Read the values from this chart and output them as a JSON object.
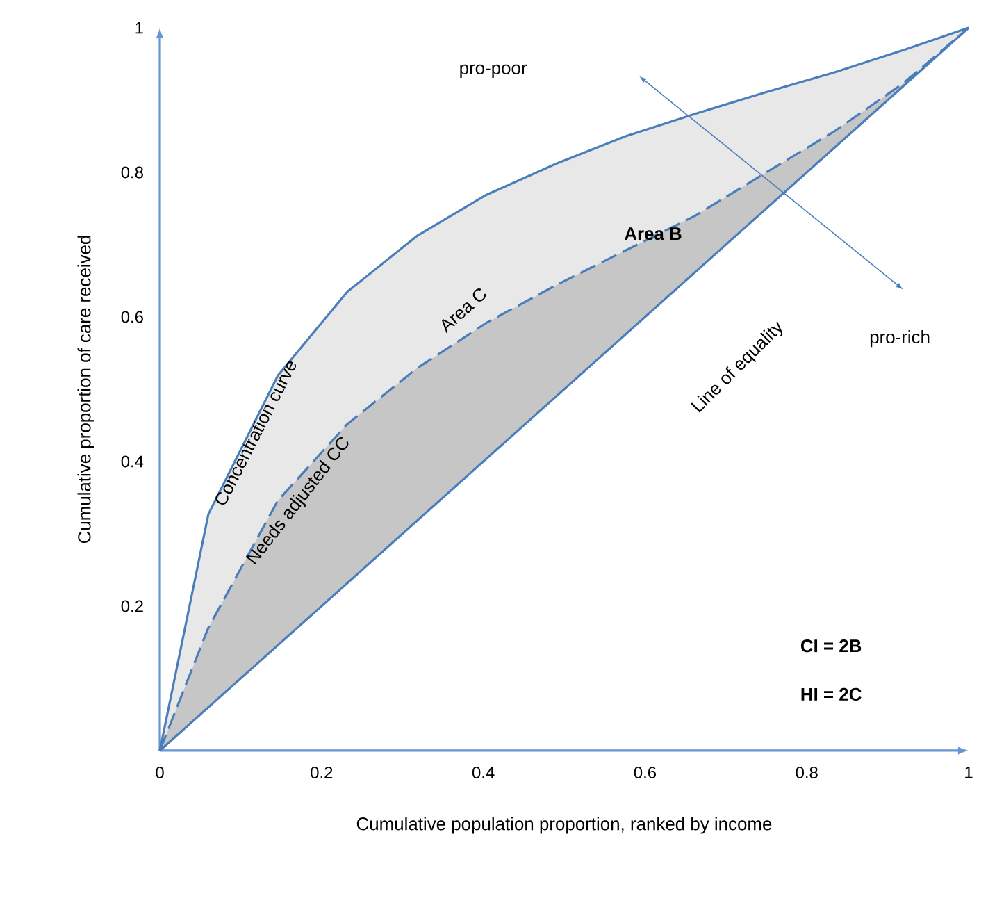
{
  "chart_data": {
    "type": "line",
    "xlabel": "Cumulative population proportion, ranked by income",
    "ylabel": "Cumulative proportion of care received",
    "xlim": [
      0,
      1
    ],
    "ylim": [
      0,
      1
    ],
    "xticks": [
      0,
      0.2,
      0.4,
      0.6,
      0.8,
      1
    ],
    "yticks": [
      0.2,
      0.4,
      0.6,
      0.8,
      1
    ],
    "grid": false,
    "legend": false,
    "marker": "none",
    "series": [
      {
        "name": "Concentration curve",
        "color": "#4a7ebb",
        "line_style": "solid",
        "x": [
          0,
          0.06,
          0.146,
          0.232,
          0.318,
          0.404,
          0.49,
          0.576,
          0.662,
          0.747,
          0.833,
          0.919,
          1
        ],
        "values": [
          0,
          0.327,
          0.519,
          0.635,
          0.712,
          0.769,
          0.812,
          0.85,
          0.881,
          0.91,
          0.938,
          0.969,
          1
        ]
      },
      {
        "name": "Needs adjusted CC",
        "color": "#4a7ebb",
        "line_style": "dashed",
        "x": [
          0,
          0.06,
          0.146,
          0.232,
          0.318,
          0.404,
          0.49,
          0.576,
          0.662,
          0.747,
          0.833,
          0.919,
          1
        ],
        "values": [
          0,
          0.17,
          0.346,
          0.452,
          0.529,
          0.592,
          0.644,
          0.692,
          0.74,
          0.798,
          0.856,
          0.923,
          1
        ]
      },
      {
        "name": "Line of equality",
        "color": "#4a7ebb",
        "line_style": "solid",
        "x": [
          0,
          1
        ],
        "values": [
          0,
          1
        ]
      }
    ],
    "annotations": [
      "pro-poor",
      "pro-rich",
      "Area B",
      "Area C",
      "CI = 2B",
      "HI = 2C"
    ]
  }
}
